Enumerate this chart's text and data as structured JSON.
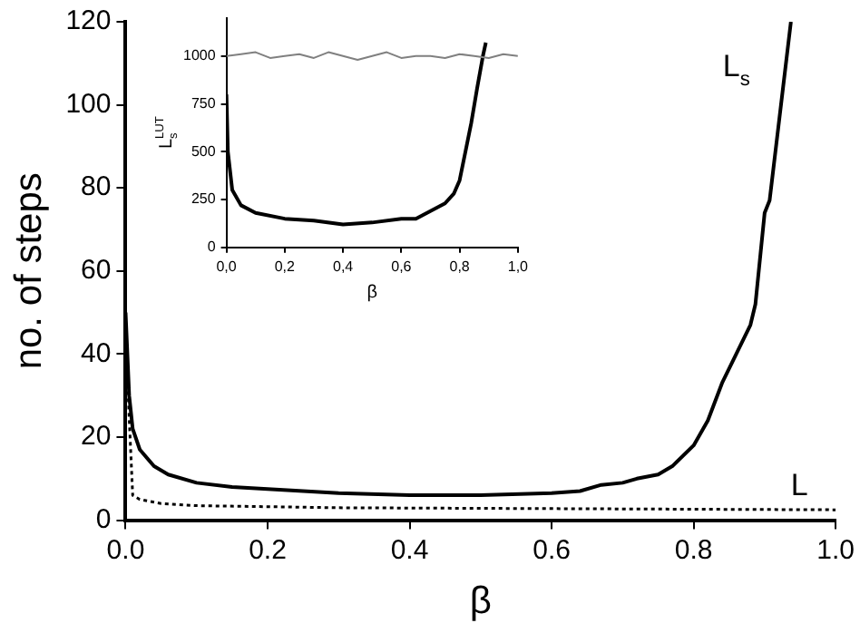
{
  "chart_data": [
    {
      "type": "line",
      "xlabel": "β",
      "ylabel": "no. of steps",
      "xlim": [
        0,
        1
      ],
      "ylim": [
        0,
        120
      ],
      "xticks": [
        {
          "value": 0,
          "label": "0.0"
        },
        {
          "value": 0.2,
          "label": "0.2"
        },
        {
          "value": 0.4,
          "label": "0.4"
        },
        {
          "value": 0.6,
          "label": "0.6"
        },
        {
          "value": 0.8,
          "label": "0.8"
        },
        {
          "value": 1,
          "label": "1.0"
        }
      ],
      "yticks": [
        0,
        20,
        40,
        60,
        80,
        100,
        120
      ],
      "grid": false,
      "legend": false,
      "series": [
        {
          "name": "L$_{s}$",
          "color": "#000000",
          "line_style": "solid",
          "x": [
            0,
            0.005,
            0.01,
            0.02,
            0.04,
            0.06,
            0.1,
            0.15,
            0.2,
            0.3,
            0.4,
            0.5,
            0.6,
            0.64,
            0.67,
            0.7,
            0.72,
            0.75,
            0.77,
            0.8,
            0.82,
            0.84,
            0.86,
            0.88,
            0.887,
            0.9,
            0.907,
            0.937
          ],
          "values": [
            50,
            30,
            22,
            17,
            13,
            11,
            9,
            8,
            7.5,
            6.5,
            6,
            6,
            6.5,
            7,
            8.5,
            9,
            10,
            11,
            13,
            18,
            24,
            33,
            40,
            47,
            52,
            74,
            77,
            120
          ]
        },
        {
          "name": "L",
          "color": "#000000",
          "line_style": "dotted",
          "x": [
            0,
            0.005,
            0.01,
            0.02,
            0.05,
            0.1,
            0.3,
            1
          ],
          "values": [
            45,
            25,
            6,
            5,
            4,
            3.5,
            3,
            2.5
          ]
        }
      ]
    },
    {
      "type": "line",
      "xlabel": "β",
      "ylabel": "L$_{s}$$^{LUT}$",
      "xlim": [
        0,
        1
      ],
      "ylim": [
        0,
        1200
      ],
      "xticks": [
        {
          "value": 0,
          "label": "0,0"
        },
        {
          "value": 0.2,
          "label": "0,2"
        },
        {
          "value": 0.4,
          "label": "0,4"
        },
        {
          "value": 0.6,
          "label": "0,6"
        },
        {
          "value": 0.8,
          "label": "0,8"
        },
        {
          "value": 1,
          "label": "1,0"
        }
      ],
      "yticks": [
        0,
        250,
        500,
        750,
        1000
      ],
      "grid": false,
      "legend": false,
      "series": [
        {
          "color": "#808080",
          "line_style": "solid",
          "x": [
            0,
            0.05,
            0.1,
            0.15,
            0.2,
            0.25,
            0.3,
            0.35,
            0.4,
            0.45,
            0.5,
            0.55,
            0.6,
            0.65,
            0.7,
            0.75,
            0.8,
            0.85,
            0.9,
            0.95,
            1
          ],
          "values": [
            1000,
            1010,
            1020,
            990,
            1000,
            1010,
            990,
            1020,
            1000,
            980,
            1000,
            1020,
            990,
            1000,
            1000,
            990,
            1010,
            1000,
            990,
            1010,
            1000
          ]
        },
        {
          "color": "#000000",
          "line_style": "solid",
          "x": [
            0,
            0.005,
            0.02,
            0.05,
            0.1,
            0.2,
            0.3,
            0.4,
            0.5,
            0.6,
            0.65,
            0.7,
            0.75,
            0.78,
            0.8,
            0.82,
            0.84,
            0.86,
            0.88,
            0.89
          ],
          "values": [
            800,
            500,
            300,
            220,
            180,
            150,
            140,
            120,
            130,
            150,
            150,
            190,
            230,
            280,
            350,
            500,
            650,
            830,
            1000,
            1070
          ]
        }
      ]
    }
  ]
}
